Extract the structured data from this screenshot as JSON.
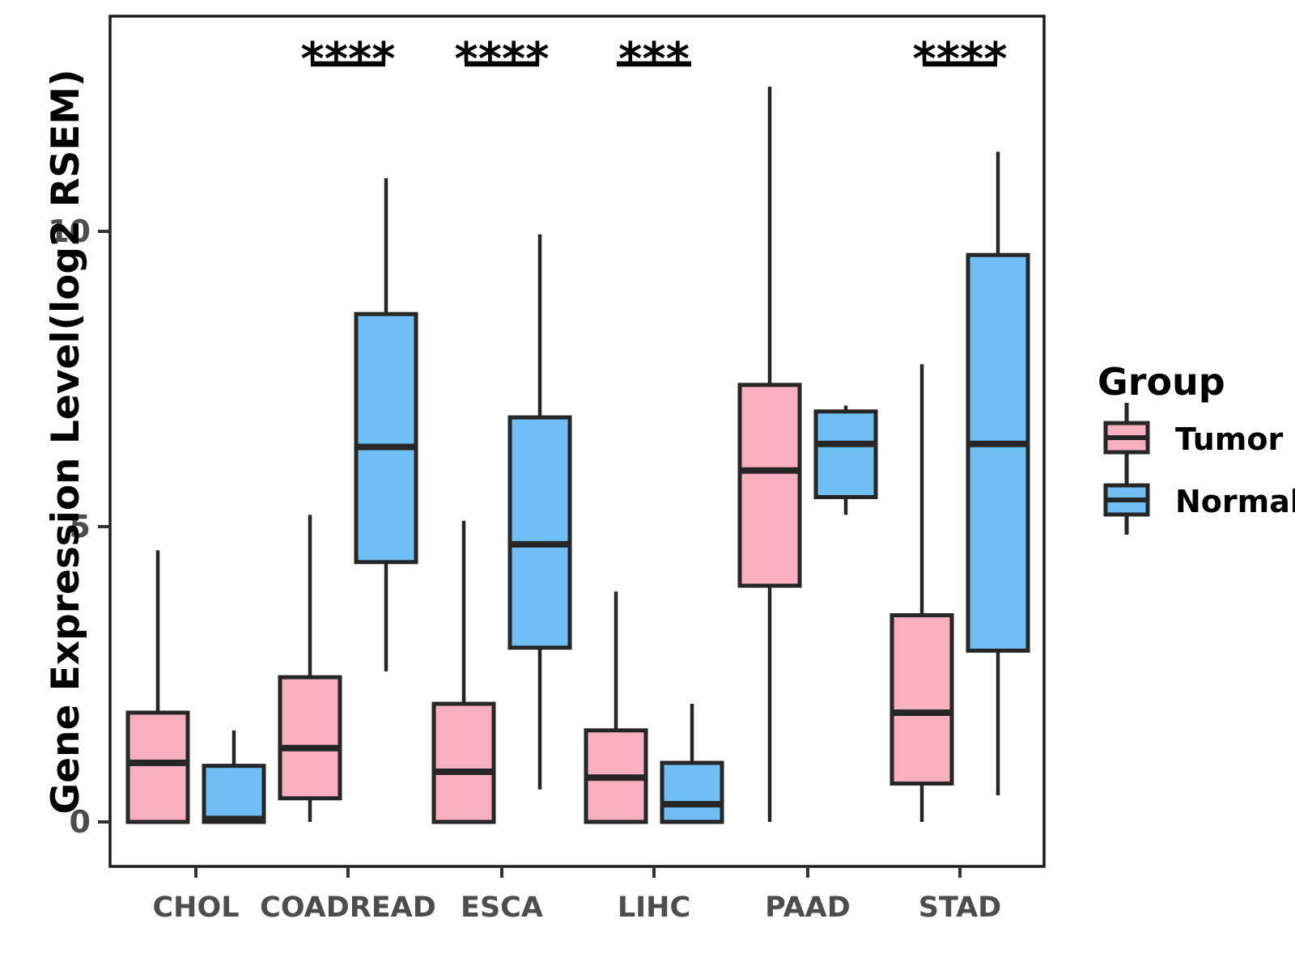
{
  "chart_data": {
    "type": "grouped_boxplot",
    "ylabel": "Gene Expression Level(log2 RSEM)",
    "xlabel": "",
    "categories": [
      "CHOL",
      "COADREAD",
      "ESCA",
      "LIHC",
      "PAAD",
      "STAD"
    ],
    "y_ticks": [
      0,
      5,
      10
    ],
    "ylim": [
      -0.75,
      13.6
    ],
    "grid": "off",
    "legend": {
      "title": "Group",
      "position": "right",
      "entries": [
        {
          "label": "Tumor",
          "color": "#F9AFC2"
        },
        {
          "label": "Normal",
          "color": "#6FBFF5"
        }
      ]
    },
    "series": [
      {
        "name": "Tumor",
        "color": "#F9AFC2",
        "boxes": [
          {
            "category": "CHOL",
            "min": 0,
            "q1": 0,
            "median": 1.0,
            "q3": 1.85,
            "max": 4.6
          },
          {
            "category": "COADREAD",
            "min": 0,
            "q1": 0.4,
            "median": 1.25,
            "q3": 2.45,
            "max": 5.2
          },
          {
            "category": "ESCA",
            "min": 0,
            "q1": 0,
            "median": 0.85,
            "q3": 2.0,
            "max": 5.1
          },
          {
            "category": "LIHC",
            "min": 0,
            "q1": 0,
            "median": 0.75,
            "q3": 1.55,
            "max": 3.9
          },
          {
            "category": "PAAD",
            "min": 0,
            "q1": 4.0,
            "median": 5.95,
            "q3": 7.4,
            "max": 12.45
          },
          {
            "category": "STAD",
            "min": 0,
            "q1": 0.65,
            "median": 1.85,
            "q3": 3.5,
            "max": 7.75
          }
        ]
      },
      {
        "name": "Normal",
        "color": "#6FBFF5",
        "boxes": [
          {
            "category": "CHOL",
            "min": 0,
            "q1": 0,
            "median": 0.05,
            "q3": 0.95,
            "max": 1.55
          },
          {
            "category": "COADREAD",
            "min": 2.55,
            "q1": 4.4,
            "median": 6.35,
            "q3": 8.6,
            "max": 10.9
          },
          {
            "category": "ESCA",
            "min": 0.55,
            "q1": 2.95,
            "median": 4.7,
            "q3": 6.85,
            "max": 9.95
          },
          {
            "category": "LIHC",
            "min": 0,
            "q1": 0,
            "median": 0.3,
            "q3": 1.0,
            "max": 2.0
          },
          {
            "category": "PAAD",
            "min": 5.2,
            "q1": 5.5,
            "median": 6.4,
            "q3": 6.95,
            "max": 7.05
          },
          {
            "category": "STAD",
            "min": 0.45,
            "q1": 2.9,
            "median": 6.4,
            "q3": 9.6,
            "max": 11.35
          }
        ]
      }
    ],
    "annotations": [
      {
        "category": "COADREAD",
        "label": "****"
      },
      {
        "category": "ESCA",
        "label": "****"
      },
      {
        "category": "LIHC",
        "label": "***"
      },
      {
        "category": "STAD",
        "label": "****"
      }
    ],
    "colors": {
      "box_stroke": "#262626",
      "panel_border": "#1a1a1a",
      "tick_label": "#4d4d4d",
      "axis_title": "#000000",
      "annotation": "#000000",
      "background": "#ffffff"
    }
  }
}
